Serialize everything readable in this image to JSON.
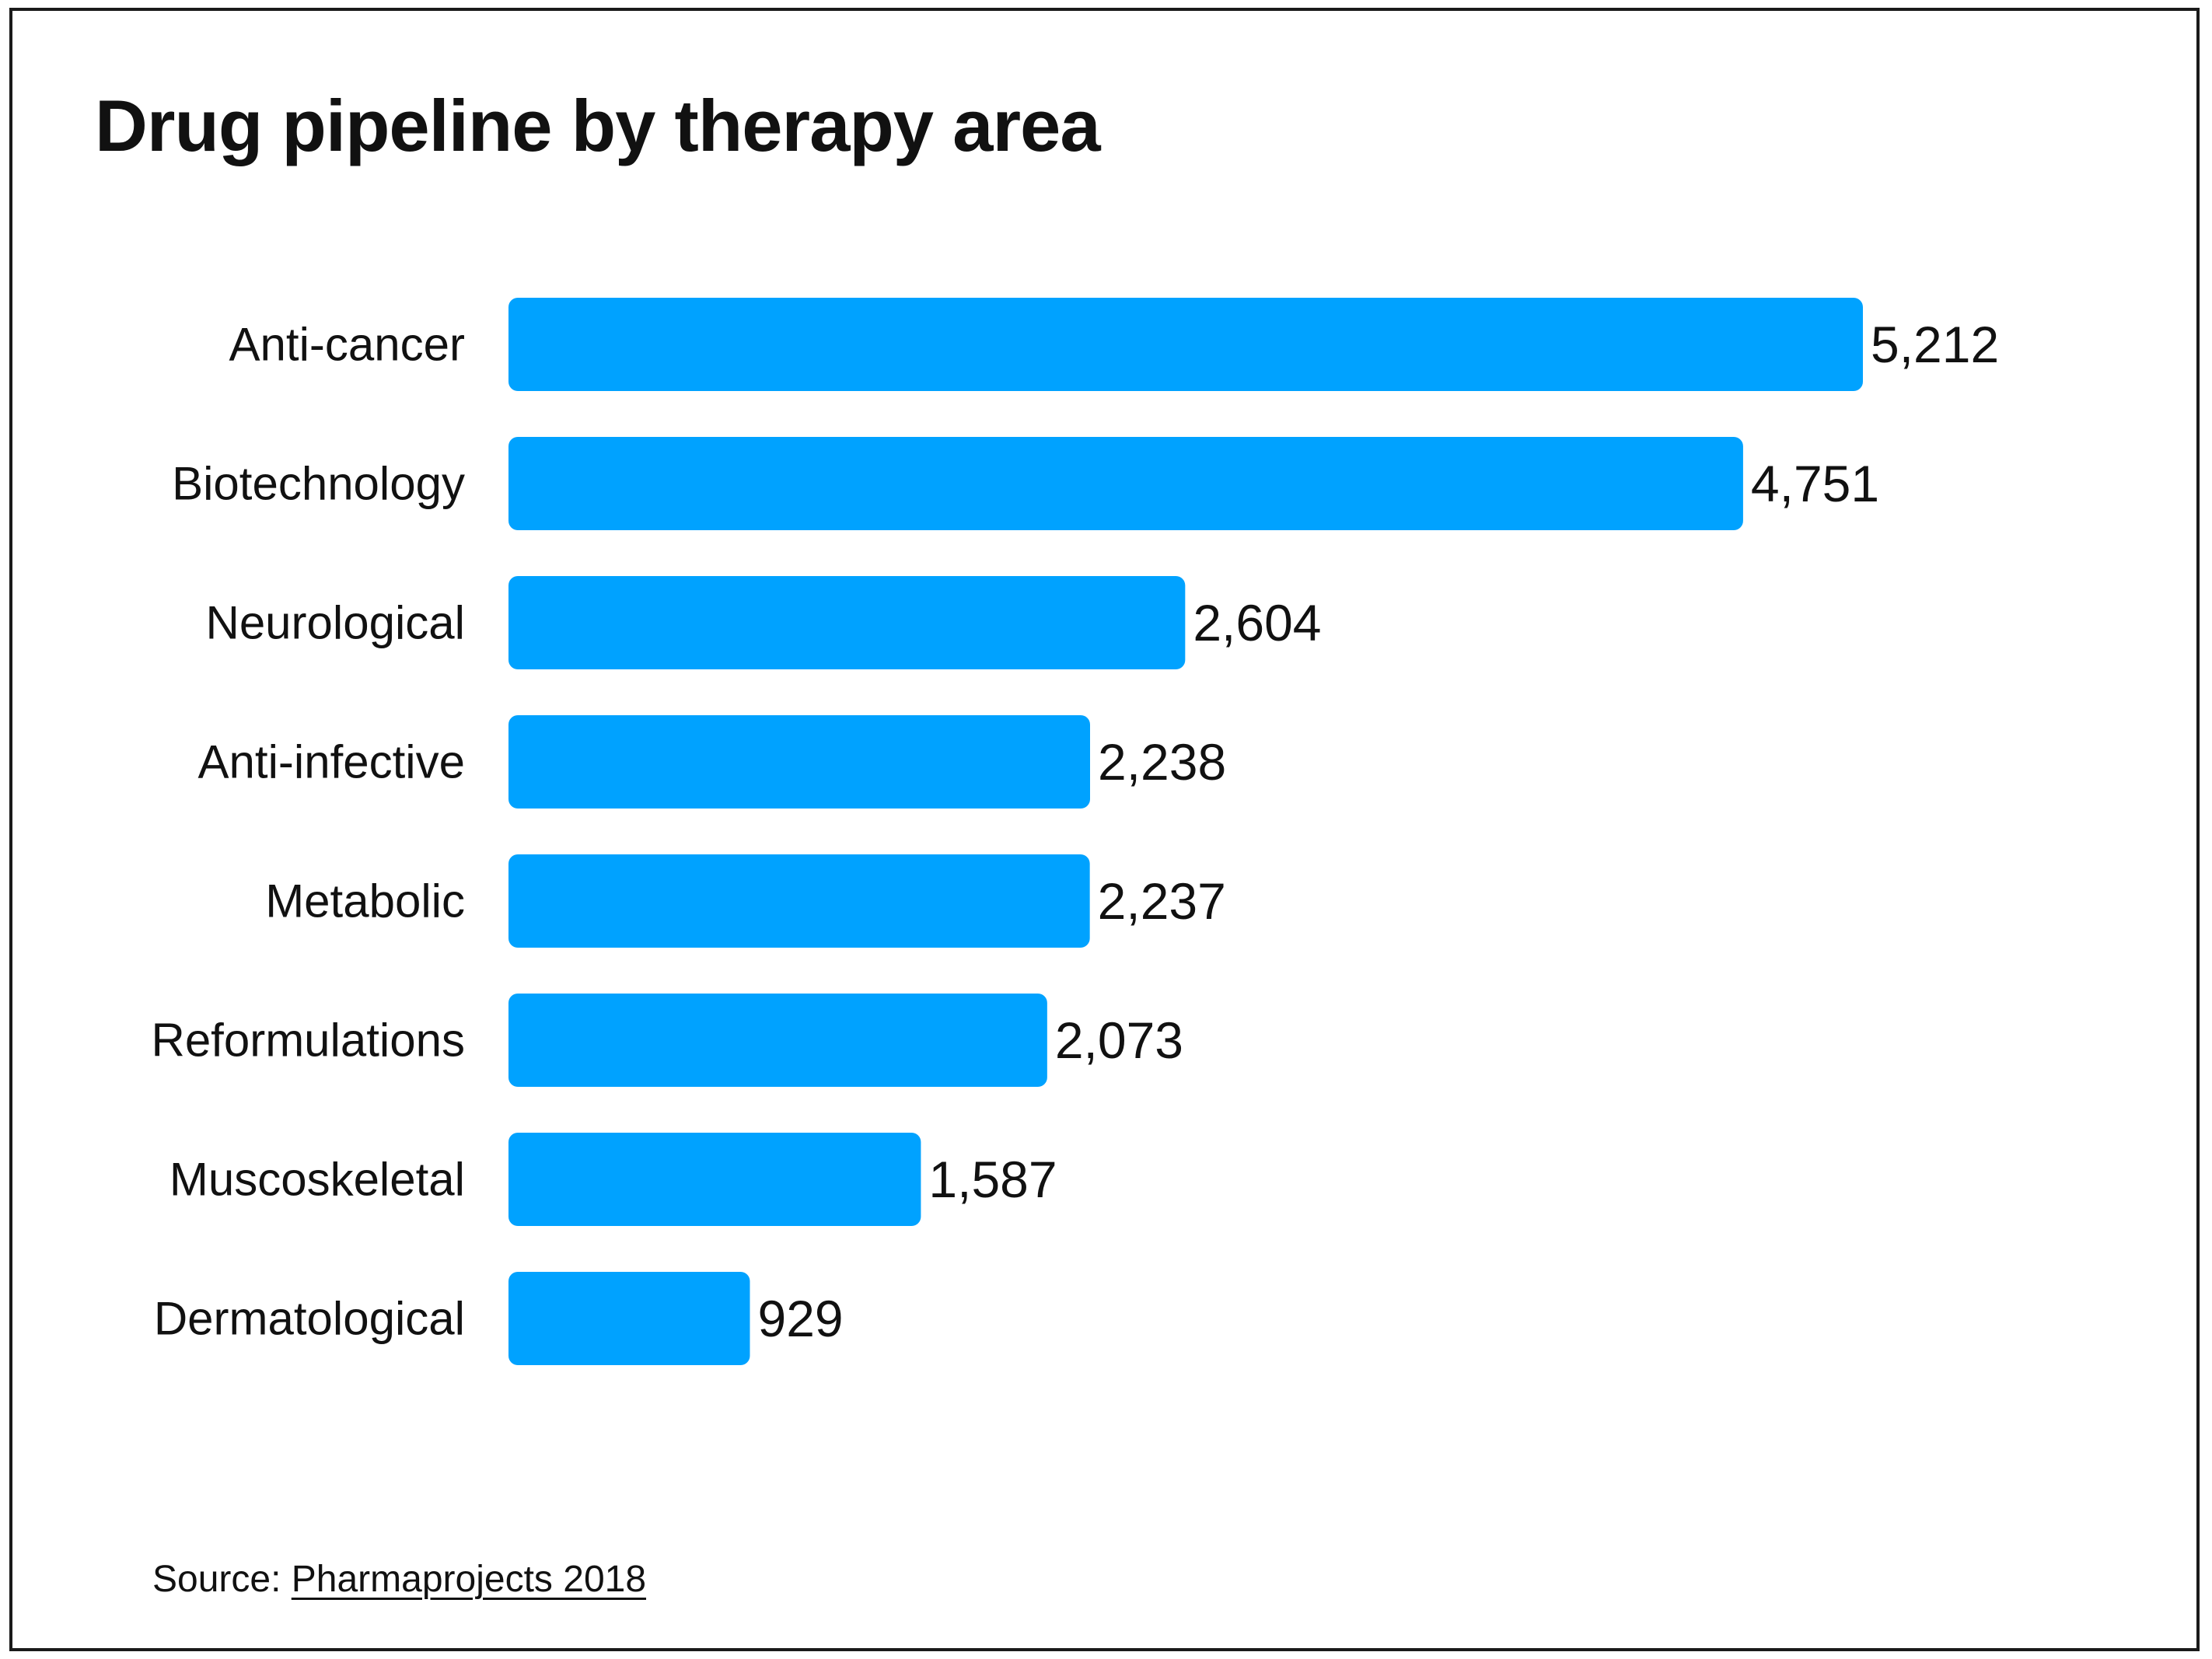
{
  "chart_data": {
    "type": "bar",
    "orientation": "horizontal",
    "title": "Drug pipeline by therapy area",
    "categories": [
      "Anti-cancer",
      "Biotechnology",
      "Neurological",
      "Anti-infective",
      "Metabolic",
      "Reformulations",
      "Muscoskeletal",
      "Dermatological"
    ],
    "values": [
      5212,
      4751,
      2604,
      2238,
      2237,
      2073,
      1587,
      929
    ],
    "value_labels": [
      "5,212",
      "4,751",
      "2,604",
      "2,238",
      "2,237",
      "2,073",
      "1,587",
      "929"
    ],
    "xlim": [
      0,
      5212
    ],
    "xlabel": "",
    "ylabel": "",
    "grid": false,
    "legend": "none",
    "bar_color": "#00a2ff"
  },
  "source": {
    "prefix": "Source: ",
    "link_text": "Pharmaprojects 2018"
  }
}
